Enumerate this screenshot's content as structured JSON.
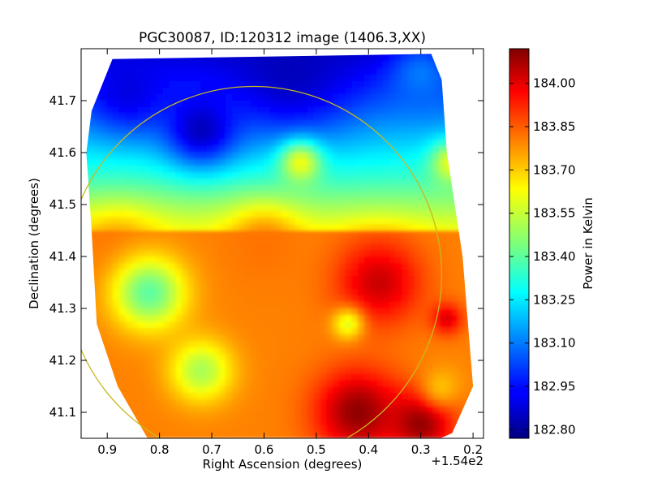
{
  "chart_data": {
    "type": "heatmap",
    "title": "PGC30087, ID:120312 image (1406.3,XX)",
    "xlabel": "Right Ascension (degrees)",
    "ylabel": "Declination (degrees)",
    "x_offset_label": "+1.54e2",
    "xlim": [
      0.95,
      0.18
    ],
    "ylim": [
      41.05,
      41.8
    ],
    "x_ticks": [
      {
        "value": 0.9,
        "label": "0.9"
      },
      {
        "value": 0.8,
        "label": "0.8"
      },
      {
        "value": 0.7,
        "label": "0.7"
      },
      {
        "value": 0.6,
        "label": "0.6"
      },
      {
        "value": 0.5,
        "label": "0.5"
      },
      {
        "value": 0.4,
        "label": "0.4"
      },
      {
        "value": 0.3,
        "label": "0.3"
      },
      {
        "value": 0.2,
        "label": "0.2"
      }
    ],
    "y_ticks": [
      {
        "value": 41.1,
        "label": "41.1"
      },
      {
        "value": 41.2,
        "label": "41.2"
      },
      {
        "value": 41.3,
        "label": "41.3"
      },
      {
        "value": 41.4,
        "label": "41.4"
      },
      {
        "value": 41.5,
        "label": "41.5"
      },
      {
        "value": 41.6,
        "label": "41.6"
      },
      {
        "value": 41.7,
        "label": "41.7"
      }
    ],
    "colorbar": {
      "label": "Power in Kelvin",
      "colormap": "jet",
      "range": [
        182.77,
        184.12
      ],
      "ticks": [
        {
          "value": 182.8,
          "label": "182.80"
        },
        {
          "value": 182.95,
          "label": "182.95"
        },
        {
          "value": 183.1,
          "label": "183.10"
        },
        {
          "value": 183.25,
          "label": "183.25"
        },
        {
          "value": 183.4,
          "label": "183.40"
        },
        {
          "value": 183.55,
          "label": "183.55"
        },
        {
          "value": 183.7,
          "label": "183.70"
        },
        {
          "value": 183.85,
          "label": "183.85"
        },
        {
          "value": 184.0,
          "label": "184.00"
        }
      ]
    },
    "circle": {
      "center_ra": 0.62,
      "center_dec": 41.365,
      "radius_deg": 0.36,
      "color": "#c8b820"
    },
    "map_outline_vertices": [
      [
        0.89,
        41.78
      ],
      [
        0.28,
        41.79
      ],
      [
        0.26,
        41.74
      ],
      [
        0.25,
        41.6
      ],
      [
        0.22,
        41.4
      ],
      [
        0.2,
        41.15
      ],
      [
        0.24,
        41.06
      ],
      [
        0.33,
        41.02
      ],
      [
        0.8,
        41.01
      ],
      [
        0.88,
        41.15
      ],
      [
        0.92,
        41.27
      ],
      [
        0.93,
        41.45
      ],
      [
        0.94,
        41.6
      ],
      [
        0.93,
        41.68
      ]
    ],
    "features": [
      {
        "ra": 0.55,
        "dec": 41.76,
        "value": 182.85,
        "sigma": 0.12
      },
      {
        "ra": 0.86,
        "dec": 41.72,
        "value": 182.9,
        "sigma": 0.08
      },
      {
        "ra": 0.72,
        "dec": 41.645,
        "value": 182.85,
        "sigma": 0.07
      },
      {
        "ra": 0.3,
        "dec": 41.75,
        "value": 183.1,
        "sigma": 0.06
      },
      {
        "ra": 0.38,
        "dec": 41.35,
        "value": 184.02,
        "sigma": 0.08
      },
      {
        "ra": 0.42,
        "dec": 41.1,
        "value": 184.1,
        "sigma": 0.08
      },
      {
        "ra": 0.3,
        "dec": 41.08,
        "value": 184.1,
        "sigma": 0.06
      },
      {
        "ra": 0.88,
        "dec": 41.4,
        "value": 183.8,
        "sigma": 0.08
      },
      {
        "ra": 0.6,
        "dec": 41.42,
        "value": 183.8,
        "sigma": 0.07
      },
      {
        "ra": 0.82,
        "dec": 41.33,
        "value": 183.4,
        "sigma": 0.07
      },
      {
        "ra": 0.72,
        "dec": 41.18,
        "value": 183.5,
        "sigma": 0.06
      },
      {
        "ra": 0.44,
        "dec": 41.27,
        "value": 183.58,
        "sigma": 0.03
      },
      {
        "ra": 0.25,
        "dec": 41.28,
        "value": 184.0,
        "sigma": 0.03
      },
      {
        "ra": 0.26,
        "dec": 41.15,
        "value": 183.7,
        "sigma": 0.04
      },
      {
        "ra": 0.53,
        "dec": 41.58,
        "value": 183.6,
        "sigma": 0.04
      },
      {
        "ra": 0.24,
        "dec": 41.58,
        "value": 183.6,
        "sigma": 0.04
      }
    ]
  }
}
